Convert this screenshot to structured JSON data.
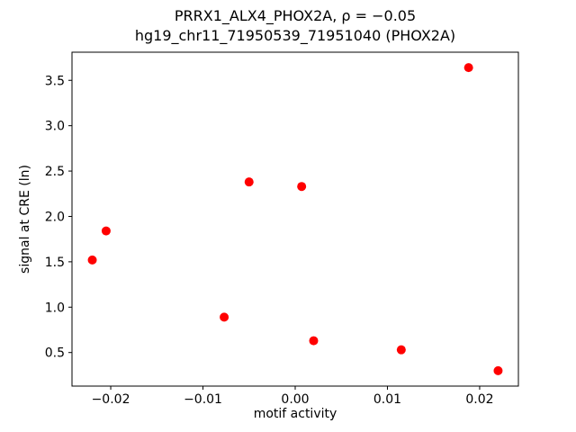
{
  "figure": {
    "kind": "matplotlib-style scatter figure"
  },
  "chart_data": {
    "type": "scatter",
    "title_lines": [
      "PRRX1_ALX4_PHOX2A, ρ = −0.05",
      "hg19_chr11_71950539_71951040 (PHOX2A)"
    ],
    "title": "PRRX1_ALX4_PHOX2A, ρ = −0.05\nhg19_chr11_71950539_71951040 (PHOX2A)",
    "xlabel": "motif activity",
    "ylabel": "signal at CRE (ln)",
    "marker_color": "#ff0000",
    "marker_style": "filled-circle",
    "grid": false,
    "legend": "none",
    "xlim": [
      -0.0242,
      0.0242
    ],
    "ylim": [
      0.13,
      3.81
    ],
    "xticks": {
      "values": [
        -0.02,
        -0.01,
        0.0,
        0.01,
        0.02
      ],
      "labels": [
        "−0.02",
        "−0.01",
        "0.00",
        "0.01",
        "0.02"
      ]
    },
    "yticks": {
      "values": [
        0.5,
        1.0,
        1.5,
        2.0,
        2.5,
        3.0,
        3.5
      ],
      "labels": [
        "0.5",
        "1.0",
        "1.5",
        "2.0",
        "2.5",
        "3.0",
        "3.5"
      ]
    },
    "points": [
      {
        "x": -0.022,
        "y": 1.52
      },
      {
        "x": -0.0205,
        "y": 1.84
      },
      {
        "x": -0.0077,
        "y": 0.89
      },
      {
        "x": -0.005,
        "y": 2.38
      },
      {
        "x": 0.0007,
        "y": 2.33
      },
      {
        "x": 0.002,
        "y": 0.63
      },
      {
        "x": 0.0115,
        "y": 0.53
      },
      {
        "x": 0.0188,
        "y": 3.64
      },
      {
        "x": 0.022,
        "y": 0.3
      }
    ]
  }
}
